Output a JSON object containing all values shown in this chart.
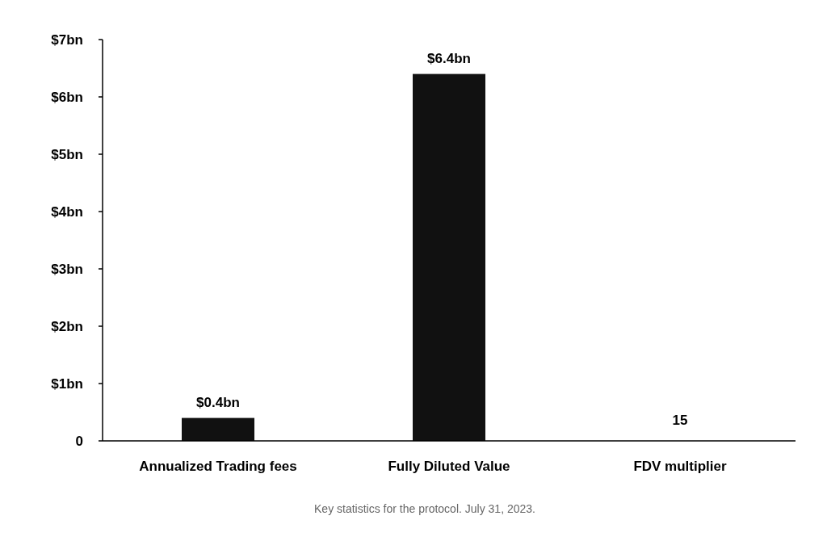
{
  "chart_data": {
    "type": "bar",
    "categories": [
      "Annualized Trading fees",
      "Fully Diluted Value",
      "FDV multiplier"
    ],
    "values": [
      0.4,
      6.4,
      null
    ],
    "value_labels": [
      "$0.4bn",
      "$6.4bn",
      "15"
    ],
    "color": "#111111",
    "ylim": [
      0,
      7
    ],
    "yticks": [
      {
        "value": 0,
        "label": "0"
      },
      {
        "value": 1,
        "label": "$1bn"
      },
      {
        "value": 2,
        "label": "$2bn"
      },
      {
        "value": 3,
        "label": "$3bn"
      },
      {
        "value": 4,
        "label": "$4bn"
      },
      {
        "value": 5,
        "label": "$5bn"
      },
      {
        "value": 6,
        "label": "$6bn"
      },
      {
        "value": 7,
        "label": "$7bn"
      }
    ],
    "grid": false,
    "annotations": [
      "Key statistics for the protocol. July 31, 2023."
    ]
  }
}
